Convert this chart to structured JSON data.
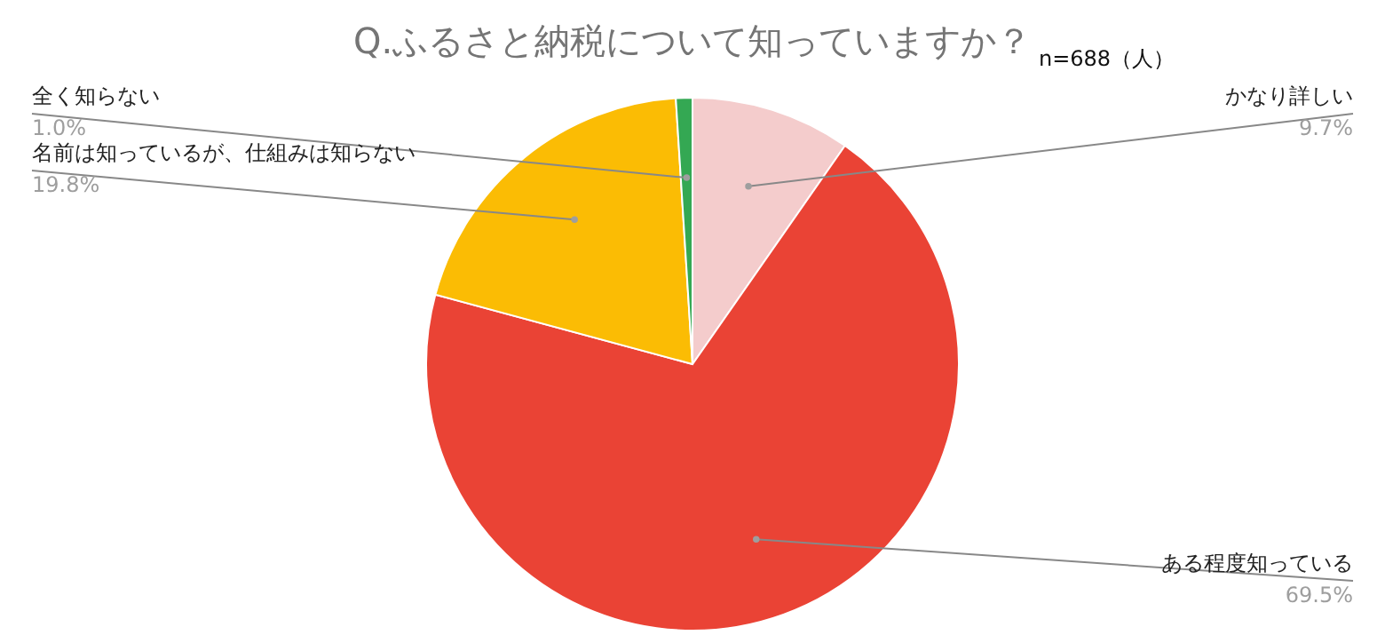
{
  "chart_data": {
    "type": "pie",
    "title": "Q.ふるさと納税について知っていますか？",
    "annotations": [
      "n=688（人）"
    ],
    "categories": [
      "かなり詳しい",
      "ある程度知っている",
      "名前は知っているが、仕組みは知らない",
      "全く知らない"
    ],
    "values": [
      9.7,
      69.5,
      19.8,
      1.0
    ],
    "colors": [
      "#f4cccc",
      "#ea4335",
      "#fbbc04",
      "#34a853"
    ],
    "value_labels": [
      "9.7%",
      "69.5%",
      "19.8%",
      "1.0%"
    ]
  }
}
